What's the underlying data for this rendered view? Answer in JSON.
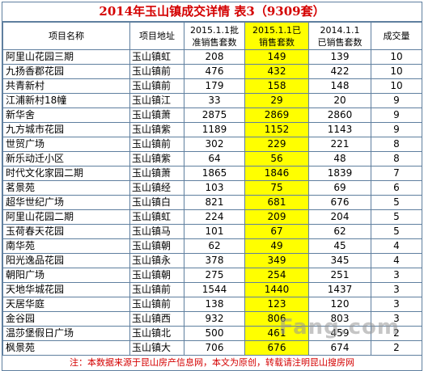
{
  "title": "2014年玉山镇成交详情  表3（9309套）",
  "headers": {
    "name": "项目名称",
    "address": "项目地址",
    "approved_line1": "2015.1.1批",
    "approved_line2": "准销售套数",
    "sold2015_line1": "2015.1.1已",
    "sold2015_line2": "销售套数",
    "sold2014_line1": "2014.1.1",
    "sold2014_line2": "已销售套数",
    "deals": "成交量"
  },
  "rows": [
    {
      "name": "阿里山花园三期",
      "address": "玉山镇虹",
      "approved": "208",
      "sold2015": "149",
      "sold2014": "139",
      "deals": "10"
    },
    {
      "name": "九扬香郡花园",
      "address": "玉山镇前",
      "approved": "476",
      "sold2015": "432",
      "sold2014": "422",
      "deals": "10"
    },
    {
      "name": "共青新村",
      "address": "玉山镇前",
      "approved": "179",
      "sold2015": "158",
      "sold2014": "148",
      "deals": "10"
    },
    {
      "name": "江浦新村18幢",
      "address": "玉山镇江",
      "approved": "33",
      "sold2015": "29",
      "sold2014": "20",
      "deals": "9"
    },
    {
      "name": "新华舍",
      "address": "玉山镇萧",
      "approved": "2875",
      "sold2015": "2869",
      "sold2014": "2860",
      "deals": "9"
    },
    {
      "name": "九方城市花园",
      "address": "玉山镇紫",
      "approved": "1189",
      "sold2015": "1152",
      "sold2014": "1143",
      "deals": "9"
    },
    {
      "name": "世贸广场",
      "address": "玉山镇前",
      "approved": "302",
      "sold2015": "229",
      "sold2014": "221",
      "deals": "8"
    },
    {
      "name": "新乐动迁小区",
      "address": "玉山镇紫",
      "approved": "64",
      "sold2015": "56",
      "sold2014": "48",
      "deals": "8"
    },
    {
      "name": "时代文化家园二期",
      "address": "玉山镇萧",
      "approved": "1865",
      "sold2015": "1846",
      "sold2014": "1839",
      "deals": "7"
    },
    {
      "name": "茗景苑",
      "address": "玉山镇经",
      "approved": "103",
      "sold2015": "75",
      "sold2014": "69",
      "deals": "6"
    },
    {
      "name": "超华世纪广场",
      "address": "玉山镇白",
      "approved": "821",
      "sold2015": "681",
      "sold2014": "676",
      "deals": "5"
    },
    {
      "name": "阿里山花园二期",
      "address": "玉山镇虹",
      "approved": "224",
      "sold2015": "209",
      "sold2014": "204",
      "deals": "5"
    },
    {
      "name": "玉荷春天花园",
      "address": "玉山镇马",
      "approved": "101",
      "sold2015": "67",
      "sold2014": "62",
      "deals": "5"
    },
    {
      "name": "南华苑",
      "address": "玉山镇朝",
      "approved": "62",
      "sold2015": "49",
      "sold2014": "45",
      "deals": "4"
    },
    {
      "name": "阳光逸品花园",
      "address": "玉山镇永",
      "approved": "378",
      "sold2015": "349",
      "sold2014": "345",
      "deals": "4"
    },
    {
      "name": "朝阳广场",
      "address": "玉山镇朝",
      "approved": "275",
      "sold2015": "254",
      "sold2014": "251",
      "deals": "3"
    },
    {
      "name": "天地华城花园",
      "address": "玉山镇前",
      "approved": "1544",
      "sold2015": "1440",
      "sold2014": "1437",
      "deals": "3"
    },
    {
      "name": "天居华庭",
      "address": "玉山镇前",
      "approved": "138",
      "sold2015": "123",
      "sold2014": "120",
      "deals": "3"
    },
    {
      "name": "金谷园",
      "address": "玉山镇西",
      "approved": "932",
      "sold2015": "806",
      "sold2014": "803",
      "deals": "3"
    },
    {
      "name": "温莎堡假日广场",
      "address": "玉山镇北",
      "approved": "500",
      "sold2015": "461",
      "sold2014": "459",
      "deals": "2"
    },
    {
      "name": "枫景苑",
      "address": "玉山镇大",
      "approved": "706",
      "sold2015": "676",
      "sold2014": "674",
      "deals": "2"
    }
  ],
  "footer": "注：本数据来源于昆山房产信息网，本文为原创，转载请注明昆山搜房网",
  "watermark": "Fang.com",
  "colors": {
    "title": "#d40000",
    "highlight": "#ffff00",
    "border": "#5f7f9f",
    "footer": "#d40000"
  }
}
